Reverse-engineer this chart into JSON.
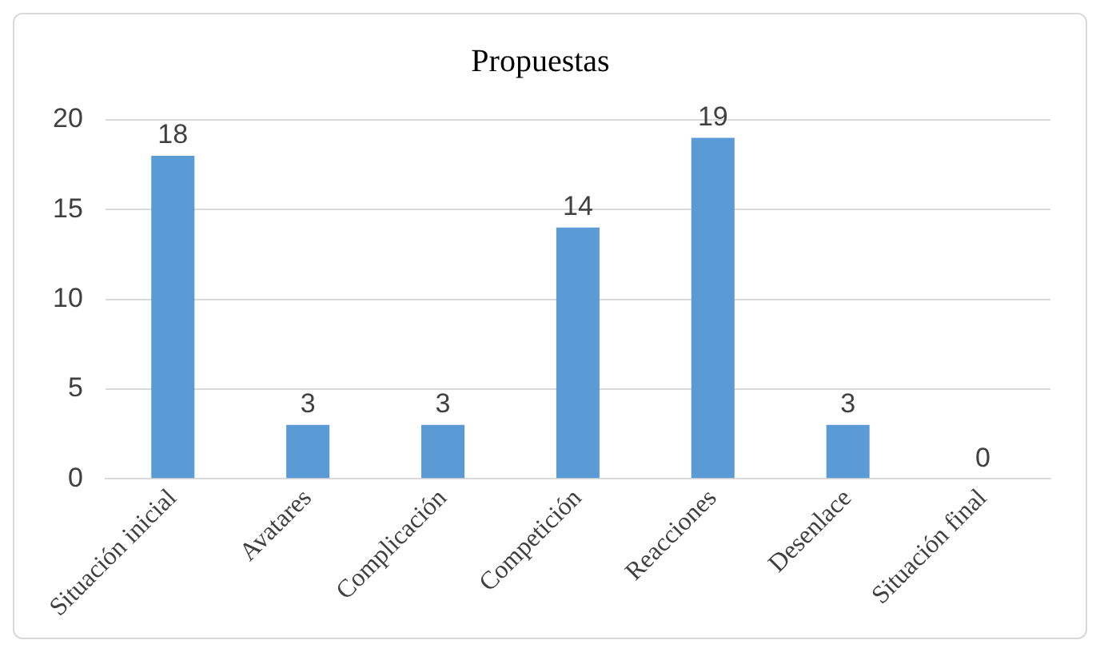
{
  "chart_data": {
    "type": "bar",
    "title": "Propuestas",
    "categories": [
      "Situación inicial",
      "Avatares",
      "Complicación",
      "Competición",
      "Reacciones",
      "Desenlace",
      "Situación final"
    ],
    "values": [
      18,
      3,
      3,
      14,
      19,
      3,
      0
    ],
    "color": "#5b9bd5",
    "ylim": [
      0,
      20
    ],
    "yticks": [
      0,
      5,
      10,
      15,
      20
    ],
    "grid": "y",
    "data_labels": true
  }
}
